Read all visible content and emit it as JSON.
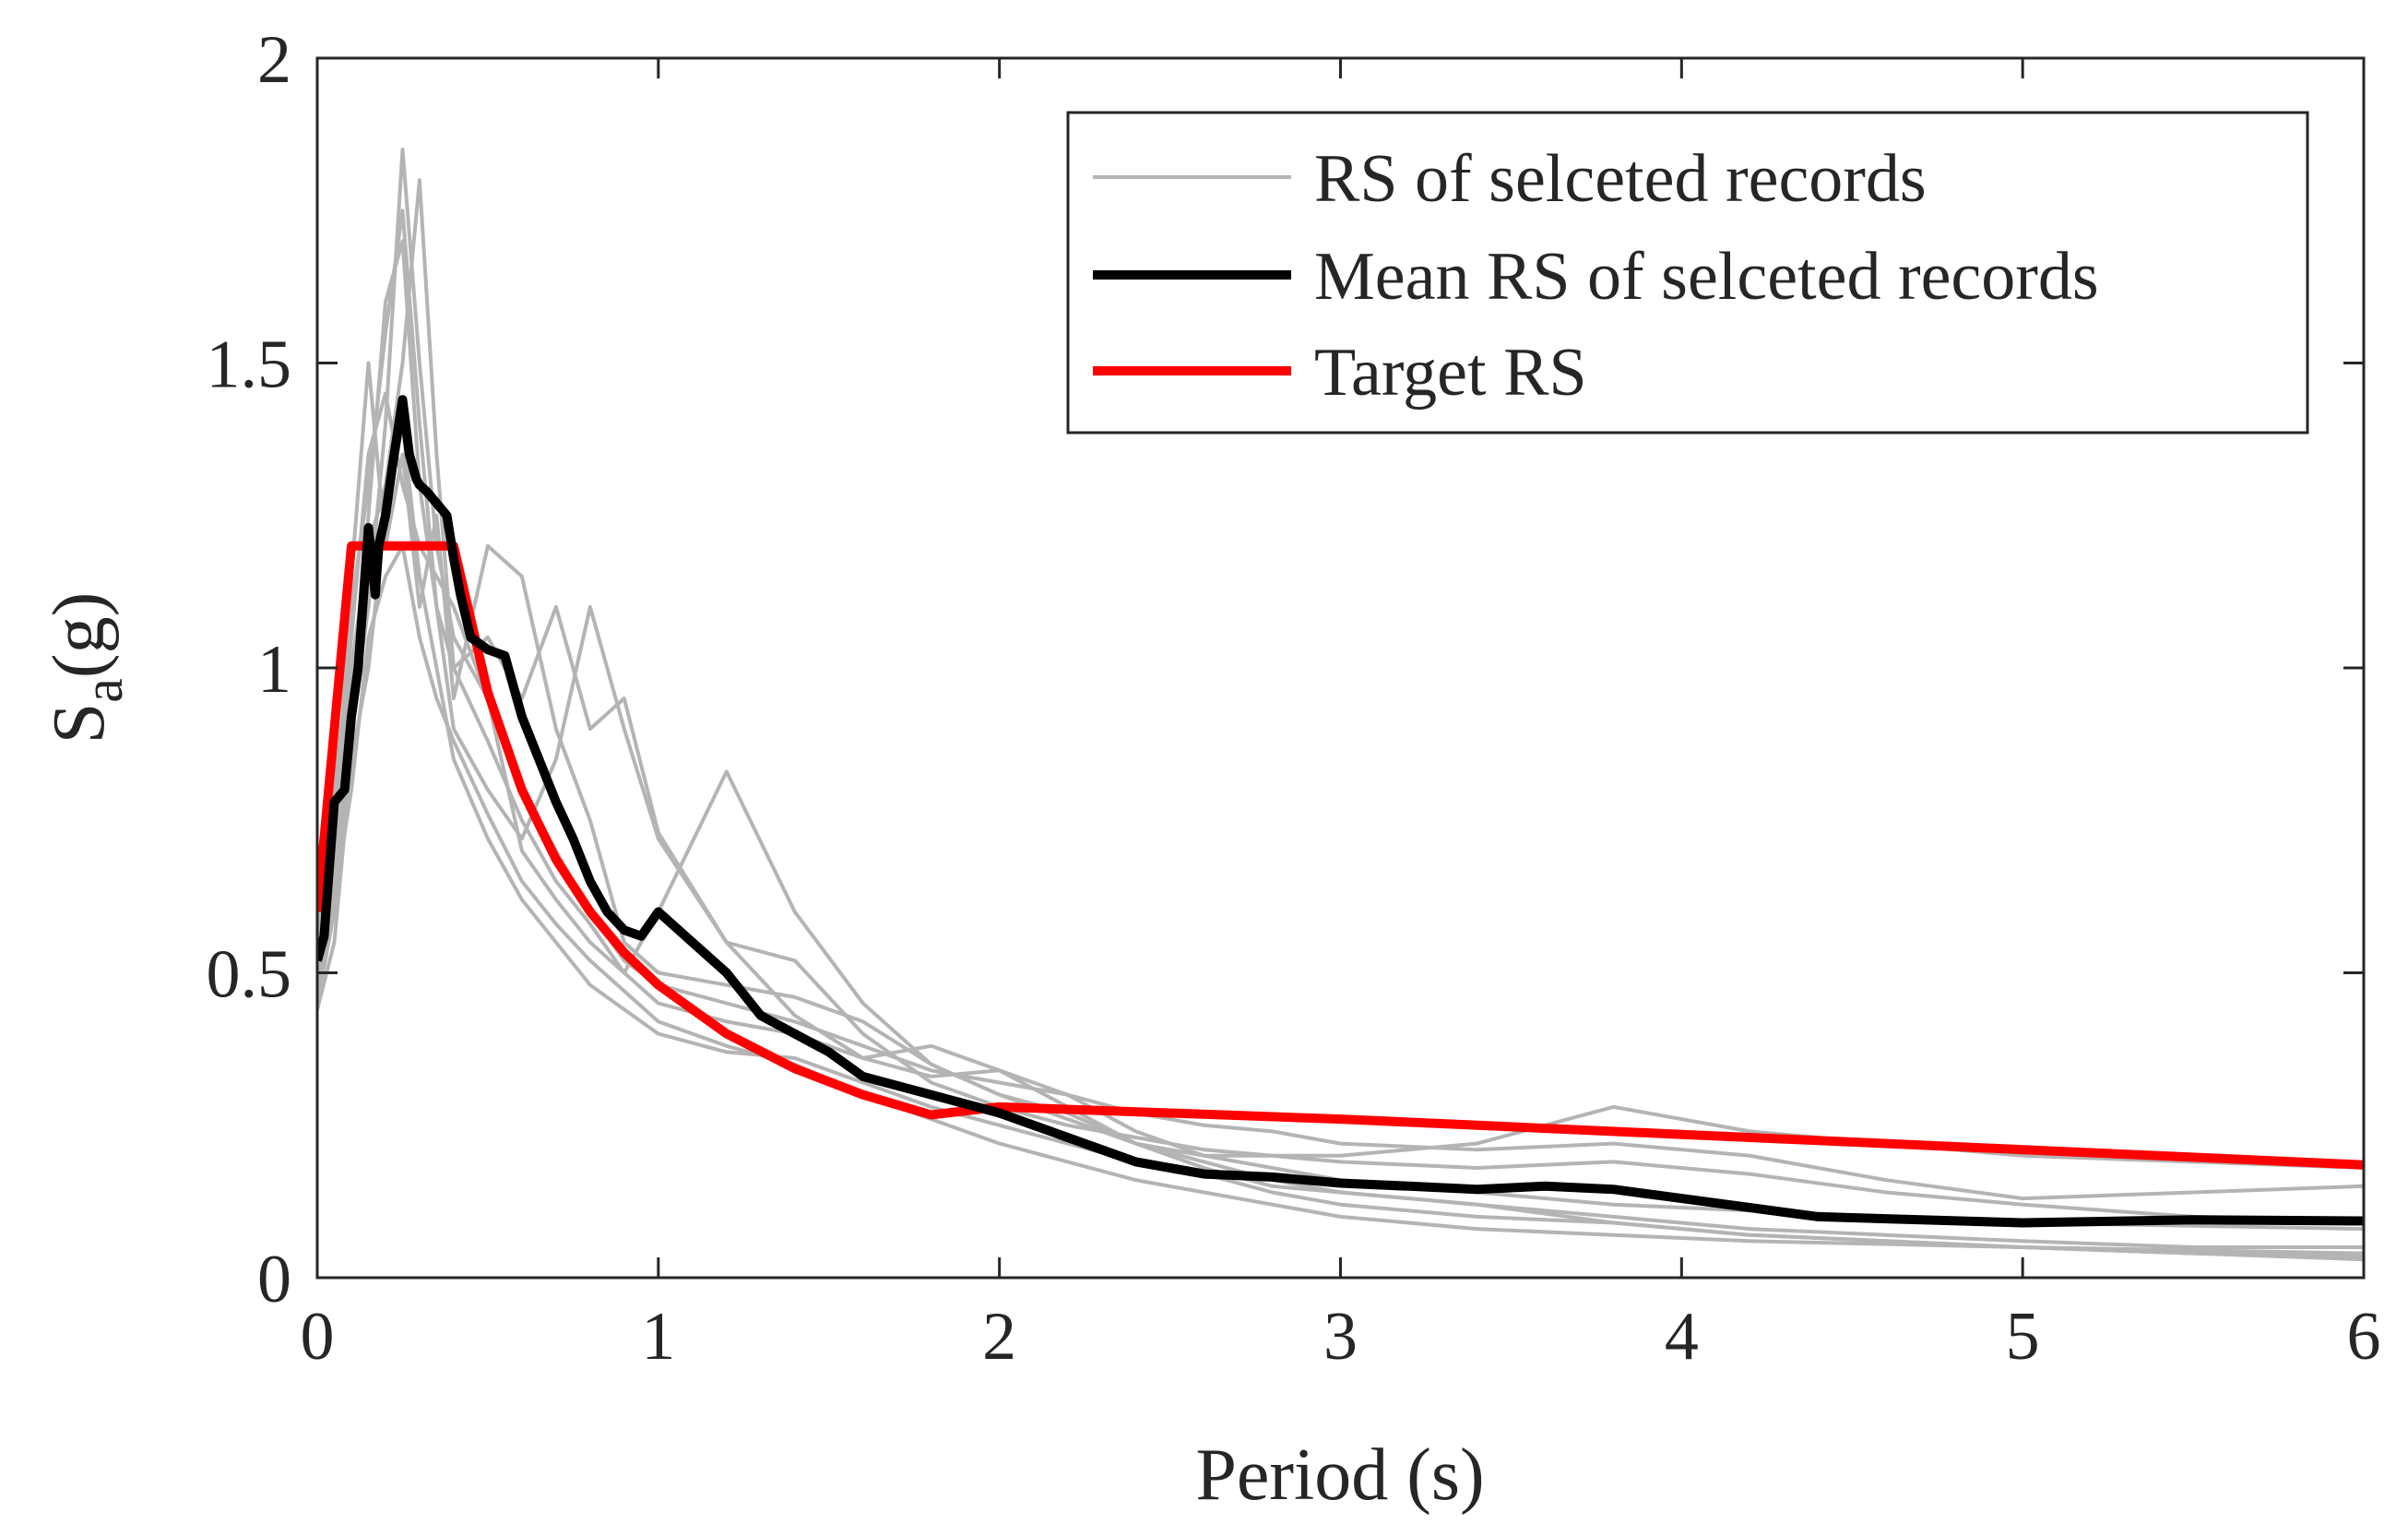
{
  "chart_data": {
    "type": "line",
    "title": "",
    "xlabel": "Period (s)",
    "ylabel": {
      "main": "S",
      "subscript": "a",
      "suffix": "(g)"
    },
    "xlim": [
      0,
      6
    ],
    "ylim": [
      0,
      2
    ],
    "xticks": [
      0,
      1,
      2,
      3,
      4,
      5,
      6
    ],
    "xtick_labels": [
      "0",
      "1",
      "2",
      "3",
      "4",
      "5",
      "6"
    ],
    "yticks": [
      0,
      0.5,
      1,
      1.5,
      2
    ],
    "ytick_labels": [
      "0",
      "0.5",
      "1",
      "1.5",
      "2"
    ],
    "grid": false,
    "legend": {
      "position": "top-right",
      "entries": [
        "RS of selceted records",
        "Mean RS of selceted records",
        "Target RS"
      ]
    },
    "colors": {
      "records": "#b4b4b4",
      "mean": "#000000",
      "target": "#ff0000",
      "axes": "#262626"
    },
    "series": [
      {
        "name": "Target RS",
        "role": "target",
        "x": [
          0,
          0.1,
          0.4,
          0.5,
          0.6,
          0.7,
          0.8,
          0.9,
          1.0,
          1.2,
          1.4,
          1.6,
          1.8,
          2.0,
          3.0,
          4.0,
          5.0,
          6.0
        ],
        "y": [
          0.6,
          1.2,
          1.2,
          0.96,
          0.8,
          0.686,
          0.6,
          0.533,
          0.48,
          0.4,
          0.343,
          0.3,
          0.267,
          0.28,
          0.26,
          0.235,
          0.21,
          0.185
        ]
      },
      {
        "name": "Mean RS of selceted records",
        "role": "mean",
        "x": [
          0,
          0.02,
          0.05,
          0.08,
          0.1,
          0.12,
          0.15,
          0.17,
          0.18,
          0.2,
          0.22,
          0.25,
          0.27,
          0.29,
          0.3,
          0.32,
          0.35,
          0.38,
          0.4,
          0.42,
          0.45,
          0.5,
          0.55,
          0.6,
          0.65,
          0.7,
          0.75,
          0.8,
          0.85,
          0.9,
          0.95,
          1.0,
          1.1,
          1.2,
          1.3,
          1.4,
          1.5,
          1.6,
          1.8,
          2.0,
          2.2,
          2.4,
          2.6,
          2.8,
          3.0,
          3.2,
          3.4,
          3.6,
          3.8,
          4.0,
          4.4,
          5.0,
          5.5,
          6.0
        ],
        "y": [
          0.52,
          0.56,
          0.78,
          0.8,
          0.92,
          1.0,
          1.23,
          1.12,
          1.2,
          1.25,
          1.33,
          1.44,
          1.35,
          1.31,
          1.3,
          1.29,
          1.27,
          1.25,
          1.18,
          1.12,
          1.05,
          1.03,
          1.02,
          0.92,
          0.85,
          0.78,
          0.72,
          0.65,
          0.6,
          0.57,
          0.56,
          0.6,
          0.55,
          0.5,
          0.43,
          0.4,
          0.37,
          0.33,
          0.3,
          0.27,
          0.23,
          0.19,
          0.17,
          0.165,
          0.155,
          0.15,
          0.145,
          0.15,
          0.145,
          0.13,
          0.1,
          0.09,
          0.095,
          0.093
        ]
      },
      {
        "name": "RS of selceted records",
        "role": "record",
        "records": [
          {
            "x": [
              0,
              0.05,
              0.1,
              0.15,
              0.2,
              0.25,
              0.3,
              0.35,
              0.4,
              0.5,
              0.6,
              0.7,
              0.8,
              0.9,
              1.0,
              1.2,
              1.4,
              1.6,
              1.8,
              2.0,
              2.2,
              2.4,
              2.6,
              2.8,
              3.0,
              3.4,
              3.8,
              4.2,
              4.6,
              5.0,
              5.5,
              6.0
            ],
            "y": [
              0.55,
              0.75,
              1.0,
              1.2,
              1.3,
              1.5,
              1.8,
              1.35,
              1.0,
              0.88,
              0.75,
              0.65,
              0.58,
              0.5,
              0.45,
              0.42,
              0.4,
              0.36,
              0.38,
              0.34,
              0.3,
              0.24,
              0.2,
              0.18,
              0.16,
              0.14,
              0.12,
              0.11,
              0.1,
              0.09,
              0.085,
              0.08
            ]
          },
          {
            "x": [
              0,
              0.05,
              0.1,
              0.15,
              0.2,
              0.25,
              0.3,
              0.35,
              0.4,
              0.5,
              0.6,
              0.7,
              0.8,
              0.9,
              1.0,
              1.2,
              1.4,
              1.6,
              1.8,
              2.0,
              2.2,
              2.4,
              2.6,
              2.8,
              3.0,
              3.4,
              3.8,
              4.2,
              4.6,
              5.0,
              5.5,
              6.0
            ],
            "y": [
              0.45,
              0.6,
              0.9,
              1.1,
              1.4,
              1.85,
              1.5,
              1.2,
              1.05,
              0.95,
              0.8,
              0.7,
              0.6,
              0.52,
              0.48,
              0.45,
              0.42,
              0.38,
              0.34,
              0.32,
              0.3,
              0.27,
              0.25,
              0.24,
              0.22,
              0.21,
              0.22,
              0.2,
              0.16,
              0.13,
              0.14,
              0.15
            ]
          },
          {
            "x": [
              0,
              0.05,
              0.1,
              0.15,
              0.2,
              0.25,
              0.3,
              0.35,
              0.4,
              0.5,
              0.6,
              0.7,
              0.8,
              0.9,
              1.0,
              1.2,
              1.4,
              1.6,
              1.8,
              2.0,
              2.2,
              2.4,
              2.6,
              2.8,
              3.0,
              3.4,
              3.8,
              4.2,
              4.6,
              5.0,
              5.5,
              6.0
            ],
            "y": [
              0.5,
              0.7,
              1.15,
              1.5,
              1.2,
              1.35,
              1.1,
              1.25,
              0.95,
              1.2,
              1.15,
              0.9,
              0.75,
              0.55,
              0.5,
              0.48,
              0.46,
              0.42,
              0.35,
              0.3,
              0.26,
              0.22,
              0.2,
              0.2,
              0.2,
              0.22,
              0.28,
              0.24,
              0.22,
              0.2,
              0.19,
              0.18
            ]
          },
          {
            "x": [
              0,
              0.05,
              0.1,
              0.15,
              0.2,
              0.25,
              0.3,
              0.35,
              0.4,
              0.5,
              0.6,
              0.7,
              0.8,
              0.9,
              1.0,
              1.2,
              1.4,
              1.6,
              1.8,
              2.0,
              2.2,
              2.4,
              2.6,
              2.8,
              3.0,
              3.4,
              3.8,
              4.2,
              4.6,
              5.0,
              5.5,
              6.0
            ],
            "y": [
              0.48,
              0.65,
              0.95,
              1.25,
              1.6,
              1.7,
              1.3,
              1.1,
              0.9,
              0.8,
              0.72,
              0.85,
              1.1,
              0.9,
              0.72,
              0.55,
              0.43,
              0.36,
              0.33,
              0.34,
              0.28,
              0.22,
              0.18,
              0.15,
              0.14,
              0.12,
              0.1,
              0.08,
              0.07,
              0.06,
              0.05,
              0.05
            ]
          },
          {
            "x": [
              0,
              0.05,
              0.1,
              0.15,
              0.2,
              0.25,
              0.3,
              0.35,
              0.4,
              0.5,
              0.6,
              0.7,
              0.8,
              0.9,
              1.0,
              1.2,
              1.4,
              1.6,
              1.8,
              2.0,
              2.2,
              2.4,
              2.6,
              2.8,
              3.0,
              3.4,
              3.8,
              4.2,
              4.6,
              5.0,
              5.5,
              6.0
            ],
            "y": [
              0.58,
              0.8,
              1.05,
              1.35,
              1.45,
              1.3,
              1.2,
              1.15,
              1.1,
              0.95,
              0.7,
              0.62,
              0.55,
              0.5,
              0.6,
              0.83,
              0.6,
              0.45,
              0.35,
              0.3,
              0.27,
              0.22,
              0.19,
              0.16,
              0.14,
              0.12,
              0.09,
              0.07,
              0.06,
              0.05,
              0.045,
              0.04
            ]
          },
          {
            "x": [
              0,
              0.05,
              0.1,
              0.15,
              0.2,
              0.25,
              0.3,
              0.35,
              0.4,
              0.5,
              0.6,
              0.7,
              0.8,
              0.9,
              1.0,
              1.2,
              1.4,
              1.6,
              1.8,
              2.0,
              2.2,
              2.4,
              2.6,
              2.8,
              3.0,
              3.4,
              3.8,
              4.2,
              4.6,
              5.0,
              5.5,
              6.0
            ],
            "y": [
              0.44,
              0.55,
              0.85,
              1.0,
              1.25,
              1.4,
              1.15,
              1.0,
              0.85,
              0.72,
              0.62,
              0.55,
              0.48,
              0.44,
              0.4,
              0.37,
              0.36,
              0.32,
              0.28,
              0.25,
              0.22,
              0.19,
              0.17,
              0.14,
              0.12,
              0.1,
              0.09,
              0.07,
              0.06,
              0.05,
              0.04,
              0.03
            ]
          },
          {
            "x": [
              0,
              0.05,
              0.1,
              0.15,
              0.2,
              0.25,
              0.3,
              0.35,
              0.4,
              0.5,
              0.6,
              0.7,
              0.8,
              0.9,
              1.0,
              1.2,
              1.4,
              1.6,
              1.8,
              2.0,
              2.2,
              2.4,
              2.6,
              2.8,
              3.0,
              3.4,
              3.8,
              4.2,
              4.6,
              5.0,
              5.5,
              6.0
            ],
            "y": [
              0.52,
              0.7,
              1.1,
              1.3,
              1.55,
              1.75,
              1.4,
              1.1,
              1.0,
              1.05,
              0.95,
              1.1,
              0.9,
              0.95,
              0.73,
              0.55,
              0.52,
              0.4,
              0.32,
              0.28,
              0.25,
              0.23,
              0.21,
              0.2,
              0.19,
              0.18,
              0.19,
              0.17,
              0.14,
              0.12,
              0.1,
              0.09
            ]
          },
          {
            "x": [
              0,
              0.05,
              0.1,
              0.15,
              0.2,
              0.25,
              0.3,
              0.35,
              0.4,
              0.5,
              0.6,
              0.7,
              0.8,
              0.9,
              1.0,
              1.2,
              1.4,
              1.6,
              1.8,
              2.0,
              2.2,
              2.4,
              2.6,
              2.8,
              3.0,
              3.4,
              3.8,
              4.2,
              4.6,
              5.0,
              5.5,
              6.0
            ],
            "y": [
              0.47,
              0.62,
              0.8,
              1.05,
              1.15,
              1.2,
              1.05,
              0.95,
              0.88,
              0.76,
              0.65,
              0.58,
              0.52,
              0.47,
              0.42,
              0.38,
              0.35,
              0.3,
              0.26,
              0.22,
              0.19,
              0.16,
              0.14,
              0.12,
              0.1,
              0.08,
              0.07,
              0.06,
              0.055,
              0.05,
              0.04,
              0.035
            ]
          }
        ]
      }
    ]
  }
}
